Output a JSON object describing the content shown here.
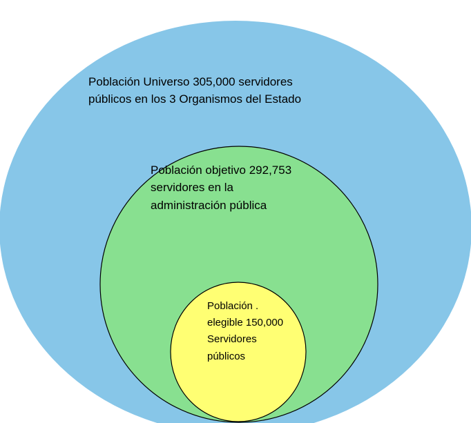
{
  "nodes": [
    {
      "lines": [
        "Población Universo 305,000 servidores",
        "públicos en los 3 Organismos del Estado"
      ]
    },
    {
      "lines": [
        "Población objetivo 292,753",
        "servidores en la",
        "administración pública"
      ]
    },
    {
      "lines": [
        "Población .",
        "elegible 150,000",
        "Servidores",
        "públicos"
      ]
    }
  ]
}
